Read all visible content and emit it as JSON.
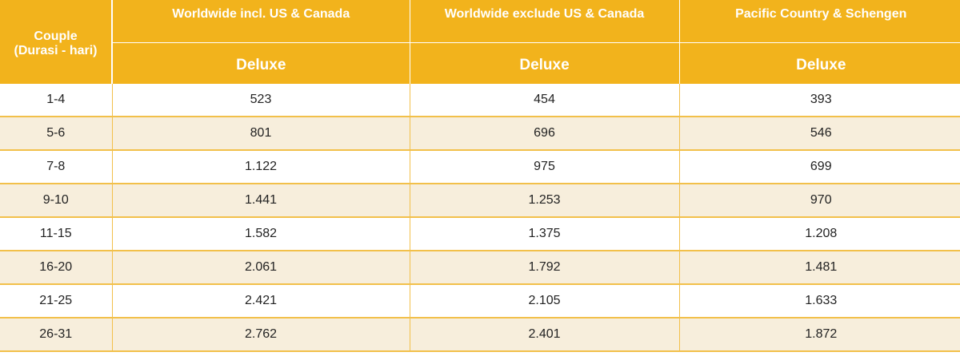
{
  "header": {
    "couple_label": "Couple",
    "duration_label": "(Durasi - hari)",
    "regions": [
      {
        "name": "Worldwide incl. US & Canada",
        "tier": "Deluxe"
      },
      {
        "name": "Worldwide exclude US & Canada",
        "tier": "Deluxe"
      },
      {
        "name": "Pacific Country & Schengen",
        "tier": "Deluxe"
      }
    ]
  },
  "rows": [
    {
      "duration": "1-4",
      "values": [
        "523",
        "454",
        "393"
      ]
    },
    {
      "duration": "5-6",
      "values": [
        "801",
        "696",
        "546"
      ]
    },
    {
      "duration": "7-8",
      "values": [
        "1.122",
        "975",
        "699"
      ]
    },
    {
      "duration": "9-10",
      "values": [
        "1.441",
        "1.253",
        "970"
      ]
    },
    {
      "duration": "11-15",
      "values": [
        "1.582",
        "1.375",
        "1.208"
      ]
    },
    {
      "duration": "16-20",
      "values": [
        "2.061",
        "1.792",
        "1.481"
      ]
    },
    {
      "duration": "21-25",
      "values": [
        "2.421",
        "2.105",
        "1.633"
      ]
    },
    {
      "duration": "26-31",
      "values": [
        "2.762",
        "2.401",
        "1.872"
      ]
    }
  ],
  "colors": {
    "header_bg": "#f2b31c",
    "header_text": "#ffffff",
    "row_alt_bg": "#f7eedc",
    "grid_line": "#f2c04a"
  }
}
